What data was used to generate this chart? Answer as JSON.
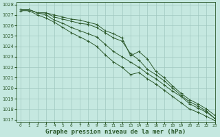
{
  "background_color": "#c5e8e0",
  "grid_color": "#a0c8c0",
  "line_color": "#2d5a2d",
  "marker_color": "#2d5a2d",
  "xlabel": "Graphe pression niveau de la mer (hPa)",
  "xlabel_fontsize": 6.5,
  "xlim": [
    -0.5,
    23
  ],
  "ylim": [
    1016.8,
    1028.2
  ],
  "yticks": [
    1017,
    1018,
    1019,
    1020,
    1021,
    1022,
    1023,
    1024,
    1025,
    1026,
    1027,
    1028
  ],
  "xticks": [
    0,
    1,
    2,
    3,
    4,
    5,
    6,
    7,
    8,
    9,
    10,
    11,
    12,
    13,
    14,
    15,
    16,
    17,
    18,
    19,
    20,
    21,
    22,
    23
  ],
  "series": [
    [
      1027.5,
      1027.5,
      1027.2,
      1027.2,
      1026.8,
      1026.6,
      1026.4,
      1026.2,
      1026.1,
      1025.8,
      1025.3,
      1024.8,
      1024.5,
      1023.3,
      1022.7,
      1021.8,
      1021.3,
      1020.7,
      1020.0,
      1019.3,
      1018.7,
      1018.3,
      1017.8,
      1017.1
    ],
    [
      1027.5,
      1027.5,
      1027.2,
      1027.2,
      1027.0,
      1026.8,
      1026.6,
      1026.5,
      1026.3,
      1026.1,
      1025.5,
      1025.2,
      1024.8,
      1023.1,
      1023.5,
      1022.8,
      1021.6,
      1021.0,
      1020.2,
      1019.5,
      1018.9,
      1018.5,
      1018.0,
      1017.4
    ],
    [
      1027.5,
      1027.5,
      1027.2,
      1027.0,
      1026.5,
      1026.2,
      1025.8,
      1025.5,
      1025.2,
      1024.9,
      1024.2,
      1023.5,
      1023.0,
      1022.5,
      1022.0,
      1021.4,
      1020.9,
      1020.3,
      1019.7,
      1019.2,
      1018.5,
      1018.1,
      1017.7,
      1017.1
    ],
    [
      1027.4,
      1027.4,
      1027.0,
      1026.7,
      1026.3,
      1025.8,
      1025.3,
      1024.9,
      1024.5,
      1024.0,
      1023.2,
      1022.5,
      1022.0,
      1021.3,
      1021.5,
      1020.9,
      1020.4,
      1019.8,
      1019.2,
      1018.6,
      1018.0,
      1017.7,
      1017.3,
      1016.9
    ]
  ]
}
